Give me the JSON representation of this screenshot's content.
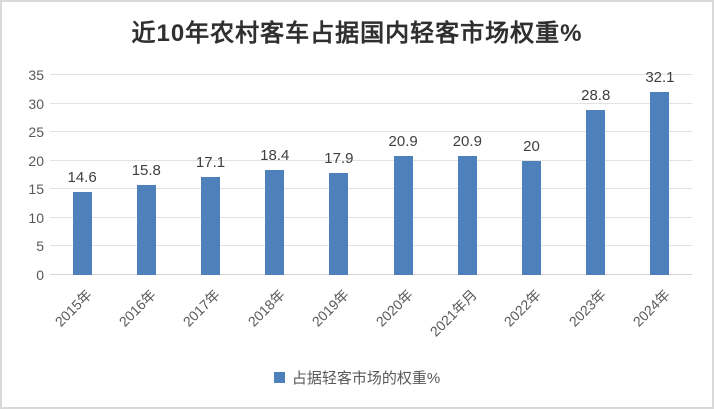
{
  "title": "近10年农村客车占据国内轻客市场权重%",
  "legend": {
    "label": "占据轻客市场的权重%"
  },
  "colors": {
    "bar": "#4e80bc",
    "gridline": "#e2e2e2",
    "axis_text": "#595959",
    "data_label": "#3f3f3f",
    "title_text": "#2f2f2f"
  },
  "chart_data": {
    "type": "bar",
    "title": "近10年农村客车占据国内轻客市场权重%",
    "categories": [
      "2015年",
      "2016年",
      "2017年",
      "2018年",
      "2019年",
      "2020年",
      "2021年月",
      "2022年",
      "2023年",
      "2024年"
    ],
    "series": [
      {
        "name": "占据轻客市场的权重%",
        "values": [
          14.6,
          15.8,
          17.1,
          18.4,
          17.9,
          20.9,
          20.9,
          20,
          28.8,
          32.1
        ]
      }
    ],
    "data_labels": [
      "14.6",
      "15.8",
      "17.1",
      "18.4",
      "17.9",
      "20.9",
      "20.9",
      "20",
      "28.8",
      "32.1"
    ],
    "xlabel": "",
    "ylabel": "",
    "ylim": [
      0,
      35
    ],
    "yticks": [
      0,
      5,
      10,
      15,
      20,
      25,
      30,
      35
    ],
    "grid": true,
    "legend_position": "bottom"
  }
}
